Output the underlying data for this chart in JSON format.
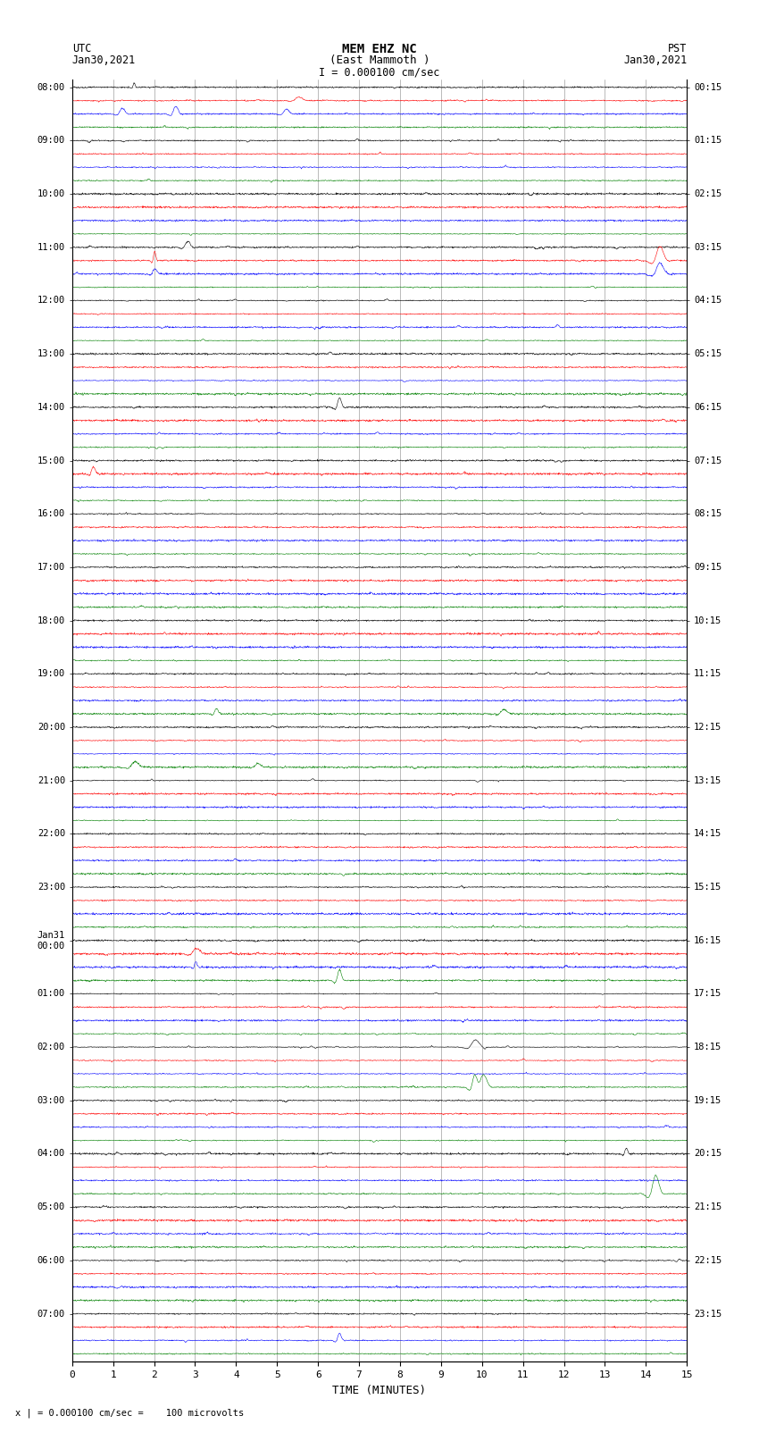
{
  "title_line1": "MEM EHZ NC",
  "title_line2": "(East Mammoth )",
  "title_scale": "I = 0.000100 cm/sec",
  "label_left_top": "UTC",
  "label_left_date": "Jan30,2021",
  "label_right_top": "PST",
  "label_right_date": "Jan30,2021",
  "xlabel": "TIME (MINUTES)",
  "footnote": "x | = 0.000100 cm/sec =    100 microvolts",
  "utc_labels": [
    "08:00",
    "09:00",
    "10:00",
    "11:00",
    "12:00",
    "13:00",
    "14:00",
    "15:00",
    "16:00",
    "17:00",
    "18:00",
    "19:00",
    "20:00",
    "21:00",
    "22:00",
    "23:00",
    "Jan31\n00:00",
    "01:00",
    "02:00",
    "03:00",
    "04:00",
    "05:00",
    "06:00",
    "07:00"
  ],
  "pst_labels": [
    "00:15",
    "01:15",
    "02:15",
    "03:15",
    "04:15",
    "05:15",
    "06:15",
    "07:15",
    "08:15",
    "09:15",
    "10:15",
    "11:15",
    "12:15",
    "13:15",
    "14:15",
    "15:15",
    "16:15",
    "17:15",
    "18:15",
    "19:15",
    "20:15",
    "21:15",
    "22:15",
    "23:15"
  ],
  "n_rows": 96,
  "n_cols": 1800,
  "row_colors": [
    "black",
    "red",
    "blue",
    "green"
  ],
  "background_color": "#ffffff",
  "figsize": [
    8.5,
    16.13
  ],
  "dpi": 100
}
